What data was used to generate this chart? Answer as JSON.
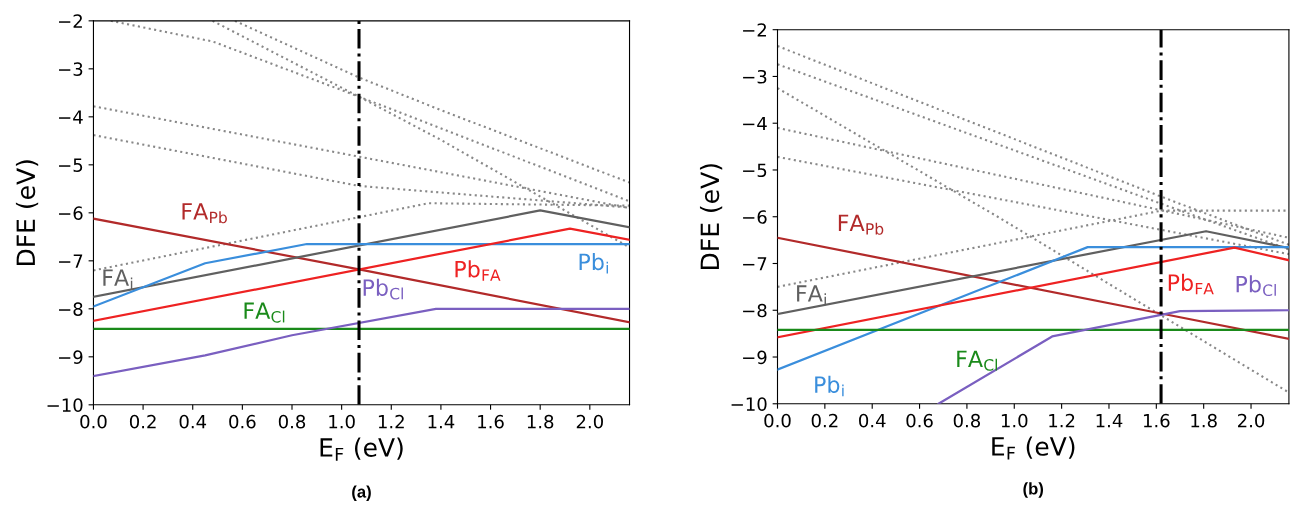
{
  "chart_data": [
    {
      "type": "line",
      "title": "(a)",
      "xlabel": "E$_{F}$ (eV)",
      "ylabel": "DFE (eV)",
      "xlim": [
        0,
        2.16
      ],
      "ylim": [
        -10,
        -2
      ],
      "xticks": [
        {
          "value": 0,
          "label": "0.0"
        },
        0.2,
        0.4,
        0.6,
        0.8,
        {
          "value": 1,
          "label": "1.0"
        },
        1.2,
        1.4,
        1.6,
        1.8,
        {
          "value": 2,
          "label": "2.0"
        }
      ],
      "yticks": [
        -10,
        -9,
        -8,
        -7,
        -6,
        -5,
        -4,
        -3,
        -2
      ],
      "grid": false,
      "legend": false,
      "marker": "none",
      "ref_lines": [
        {
          "axis": "x",
          "value": 1.07,
          "color": "#000000",
          "line_style": "dashdot"
        }
      ],
      "series": [
        {
          "color": "#888888",
          "line_style": "dotted",
          "x": [
            0,
            1.35,
            2.16
          ],
          "values": [
            -7.2,
            -5.8,
            -5.85
          ]
        },
        {
          "color": "#888888",
          "line_style": "dotted",
          "x": [
            0,
            1.07,
            2.16
          ],
          "values": [
            -4.38,
            -5.44,
            -5.89
          ]
        },
        {
          "color": "#888888",
          "line_style": "dotted",
          "x": [
            0,
            1.07,
            2.16
          ],
          "values": [
            -3.78,
            -4.83,
            -5.9
          ]
        },
        {
          "color": "#888888",
          "line_style": "dotted",
          "x": [
            0.07,
            0.48,
            1.07,
            2.16
          ],
          "values": [
            -2.0,
            -2.43,
            -3.58,
            -5.76
          ]
        },
        {
          "color": "#888888",
          "line_style": "dotted",
          "x": [
            0.48,
            1.07,
            1.4,
            2.16
          ],
          "values": [
            -2.0,
            -3.58,
            -4.48,
            -6.72
          ]
        },
        {
          "color": "#888888",
          "line_style": "dotted",
          "x": [
            0.57,
            1.07,
            1.4,
            2.16
          ],
          "values": [
            -2.0,
            -3.18,
            -3.86,
            -5.37
          ]
        },
        {
          "name": "FA$_{Pb}$",
          "color": "#b22a2a",
          "line_style": "solid",
          "x": [
            0,
            1.07,
            2.16
          ],
          "values": [
            -6.12,
            -7.18,
            -8.28
          ]
        },
        {
          "name": "FA$_{i}$",
          "color": "#606060",
          "line_style": "solid",
          "x": [
            0,
            1.8,
            2.16
          ],
          "values": [
            -7.75,
            -5.95,
            -6.3
          ]
        },
        {
          "name": "Pb$_{i}$",
          "color": "#3a8edc",
          "line_style": "solid",
          "x": [
            0,
            0.45,
            0.86,
            2.16
          ],
          "values": [
            -7.95,
            -7.05,
            -6.65,
            -6.65
          ]
        },
        {
          "name": "Pb$_{FA}$",
          "color": "#ee2222",
          "line_style": "solid",
          "x": [
            0,
            1.92,
            2.16
          ],
          "values": [
            -8.25,
            -6.33,
            -6.56
          ]
        },
        {
          "name": "FA$_{Cl}$",
          "color": "#1a8a1a",
          "line_style": "solid",
          "x": [
            0,
            2.16
          ],
          "values": [
            -8.42,
            -8.42
          ]
        },
        {
          "name": "Pb$_{Cl}$",
          "color": "#7a5fc0",
          "line_style": "solid",
          "x": [
            0,
            0.45,
            0.8,
            1.38,
            2.16
          ],
          "values": [
            -9.4,
            -8.97,
            -8.55,
            -8.0,
            -8.0
          ]
        }
      ]
    },
    {
      "type": "line",
      "title": "(b)",
      "xlabel": "E$_{F}$ (eV)",
      "ylabel": "DFE (eV)",
      "xlim": [
        0,
        2.16
      ],
      "ylim": [
        -10,
        -2
      ],
      "xticks": [
        {
          "value": 0,
          "label": "0.0"
        },
        0.2,
        0.4,
        0.6,
        0.8,
        {
          "value": 1,
          "label": "1.0"
        },
        1.2,
        1.4,
        1.6,
        1.8,
        {
          "value": 2,
          "label": "2.0"
        }
      ],
      "yticks": [
        -10,
        -9,
        -8,
        -7,
        -6,
        -5,
        -4,
        -3,
        -2
      ],
      "grid": false,
      "legend": false,
      "marker": "none",
      "ref_lines": [
        {
          "axis": "x",
          "value": 1.62,
          "color": "#000000",
          "line_style": "dashdot"
        }
      ],
      "series": [
        {
          "color": "#888888",
          "line_style": "dotted",
          "x": [
            0,
            1.62,
            2.16
          ],
          "values": [
            -2.35,
            -5.57,
            -6.6
          ]
        },
        {
          "color": "#888888",
          "line_style": "dotted",
          "x": [
            0,
            1.62,
            2.16
          ],
          "values": [
            -2.74,
            -5.72,
            -6.7
          ]
        },
        {
          "color": "#888888",
          "line_style": "dotted",
          "x": [
            0,
            0.93,
            2.16
          ],
          "values": [
            -3.25,
            -6.0,
            -9.76
          ]
        },
        {
          "color": "#888888",
          "line_style": "dotted",
          "x": [
            0,
            1.62,
            2.16
          ],
          "values": [
            -4.1,
            -5.86,
            -6.45
          ]
        },
        {
          "color": "#888888",
          "line_style": "dotted",
          "x": [
            0,
            1.33,
            2.16
          ],
          "values": [
            -4.72,
            -6.0,
            -6.8
          ]
        },
        {
          "color": "#888888",
          "line_style": "dotted",
          "x": [
            0,
            1.62,
            2.16
          ],
          "values": [
            -7.5,
            -5.87,
            -5.87
          ]
        },
        {
          "name": "FA$_{Pb}$",
          "color": "#b22a2a",
          "line_style": "solid",
          "x": [
            0,
            1.62,
            2.16
          ],
          "values": [
            -6.45,
            -8.07,
            -8.61
          ]
        },
        {
          "name": "FA$_{i}$",
          "color": "#606060",
          "line_style": "solid",
          "x": [
            0,
            1.81,
            2.16
          ],
          "values": [
            -8.08,
            -6.31,
            -6.67
          ]
        },
        {
          "name": "Pb$_{i}$",
          "color": "#3a8edc",
          "line_style": "solid",
          "x": [
            0,
            1.31,
            2.16
          ],
          "values": [
            -9.27,
            -6.65,
            -6.65
          ]
        },
        {
          "name": "Pb$_{FA}$",
          "color": "#ee2222",
          "line_style": "solid",
          "x": [
            0,
            1.93,
            2.16
          ],
          "values": [
            -8.58,
            -6.66,
            -6.93
          ]
        },
        {
          "name": "FA$_{Cl}$",
          "color": "#1a8a1a",
          "line_style": "solid",
          "x": [
            0,
            2.16
          ],
          "values": [
            -8.42,
            -8.42
          ]
        },
        {
          "name": "Pb$_{Cl}$",
          "color": "#7a5fc0",
          "line_style": "solid",
          "x": [
            0.68,
            1.16,
            1.7,
            2.16
          ],
          "values": [
            -10.0,
            -8.56,
            -8.02,
            -8.0
          ]
        }
      ]
    }
  ]
}
